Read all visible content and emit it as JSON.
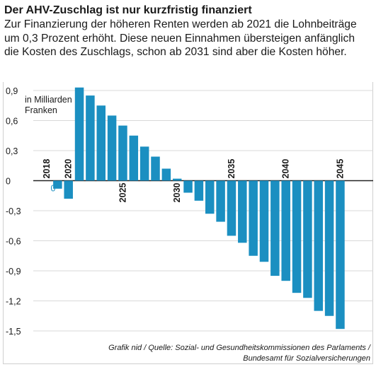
{
  "title": "Der AHV-Zuschlag ist nur kurzfristig finanziert",
  "subtitle": "Zur Finanzierung der höheren Renten werden ab 2021 die Lohnbeiträge um 0,3 Prozent erhöht. Diese neuen Einnahmen übersteigen anfänglich die Kosten des Zuschlags, schon ab 2031 sind aber die Kosten höher.",
  "source_line1": "Grafik nid / Quelle: Sozial- und Gesundheitskommissionen des Parlaments /",
  "source_line2": "Bundesamt für Sozialversicherungen",
  "colors": {
    "bar": "#1b8fc1",
    "grid": "#d9d9d9",
    "text": "#1a1a1a",
    "zero_label": "#1b8fc1"
  },
  "chart_data": {
    "type": "bar",
    "ylabel": "in Milliarden Franken",
    "ylim": [
      -1.5,
      0.9
    ],
    "y_ticks": [
      0.9,
      0.6,
      0.3,
      0,
      -0.3,
      -0.6,
      -0.9,
      -1.2,
      -1.5
    ],
    "y_tick_labels": [
      "0,9",
      "0,6",
      "0,3",
      "0",
      "-0,3",
      "-0,6",
      "-0,9",
      "-1,2",
      "-1,5"
    ],
    "grid": true,
    "x": [
      2018,
      2019,
      2020,
      2021,
      2022,
      2023,
      2024,
      2025,
      2026,
      2027,
      2028,
      2029,
      2030,
      2031,
      2032,
      2033,
      2034,
      2035,
      2036,
      2037,
      2038,
      2039,
      2040,
      2041,
      2042,
      2043,
      2044,
      2045
    ],
    "values": [
      0,
      -0.08,
      -0.18,
      0.93,
      0.85,
      0.75,
      0.65,
      0.55,
      0.45,
      0.34,
      0.24,
      0.12,
      0.02,
      -0.12,
      -0.2,
      -0.33,
      -0.41,
      -0.55,
      -0.62,
      -0.75,
      -0.81,
      -0.95,
      -1.0,
      -1.12,
      -1.17,
      -1.3,
      -1.35,
      -1.48
    ],
    "x_tick_labels": [
      "2018",
      "2020",
      "2025",
      "2030",
      "2035",
      "2040",
      "2045"
    ],
    "zero_value_label": "0"
  }
}
